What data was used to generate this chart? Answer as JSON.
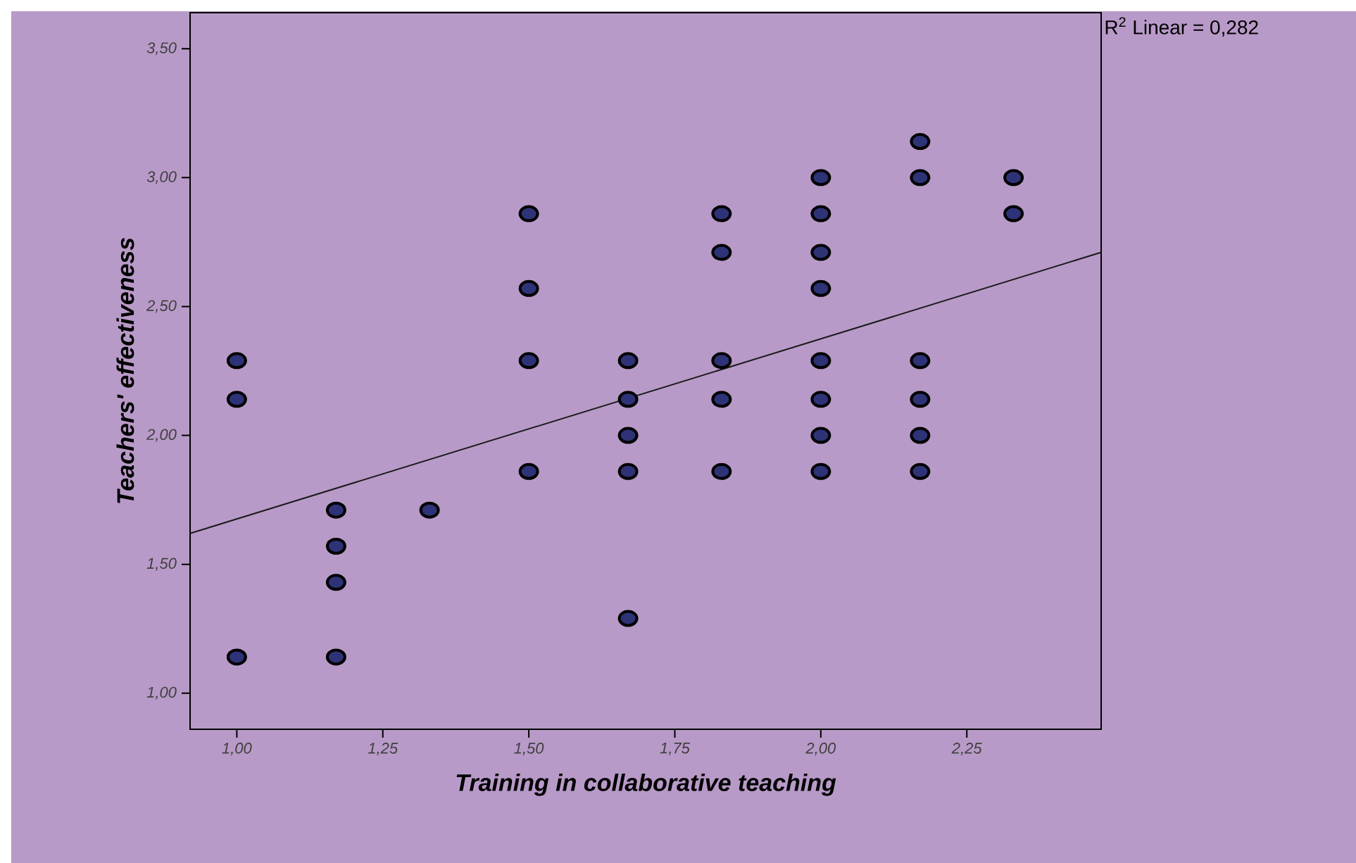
{
  "chart_data": {
    "type": "scatter",
    "xlabel": "Training in collaborative teaching",
    "ylabel": "Teachers' effectiveness",
    "annotations": [
      "R$^{2}$ Linear = 0,282"
    ],
    "xlim": [
      0.92,
      2.48
    ],
    "ylim": [
      0.86,
      3.64
    ],
    "xticks": [
      {
        "value": 1.0,
        "label": "1,00"
      },
      {
        "value": 1.25,
        "label": "1,25"
      },
      {
        "value": 1.5,
        "label": "1,50"
      },
      {
        "value": 1.75,
        "label": "1,75"
      },
      {
        "value": 2.0,
        "label": "2,00"
      },
      {
        "value": 2.25,
        "label": "2,25"
      }
    ],
    "yticks": [
      {
        "value": 1.0,
        "label": "1,00"
      },
      {
        "value": 1.5,
        "label": "1,50"
      },
      {
        "value": 2.0,
        "label": "2,00"
      },
      {
        "value": 2.5,
        "label": "2,50"
      },
      {
        "value": 3.0,
        "label": "3,00"
      },
      {
        "value": 3.5,
        "label": "3,50"
      }
    ],
    "grid": false,
    "series": [
      {
        "marker": "circle",
        "color": "#2e3377",
        "x": [
          1.0,
          1.0,
          1.0,
          1.17,
          1.17,
          1.17,
          1.17,
          1.33,
          1.5,
          1.5,
          1.5,
          1.5,
          1.67,
          1.67,
          1.67,
          1.67,
          1.67,
          1.83,
          1.83,
          1.83,
          1.83,
          1.83,
          2.0,
          2.0,
          2.0,
          2.0,
          2.0,
          2.0,
          2.0,
          2.0,
          2.17,
          2.17,
          2.17,
          2.17,
          2.17,
          2.17,
          2.33,
          2.33
        ],
        "values": [
          2.29,
          2.14,
          1.14,
          1.71,
          1.57,
          1.43,
          1.14,
          1.71,
          2.86,
          2.57,
          2.29,
          1.86,
          2.29,
          2.14,
          2.0,
          1.86,
          1.29,
          2.86,
          2.71,
          2.29,
          2.14,
          1.86,
          3.0,
          2.86,
          2.71,
          2.57,
          2.29,
          2.14,
          2.0,
          1.86,
          3.14,
          3.0,
          2.29,
          2.14,
          2.0,
          1.86,
          3.0,
          2.86
        ]
      },
      {
        "type": "line",
        "color": "#1a1a1a",
        "x": [
          0.92,
          2.48
        ],
        "values": [
          1.62,
          2.71
        ]
      }
    ]
  }
}
